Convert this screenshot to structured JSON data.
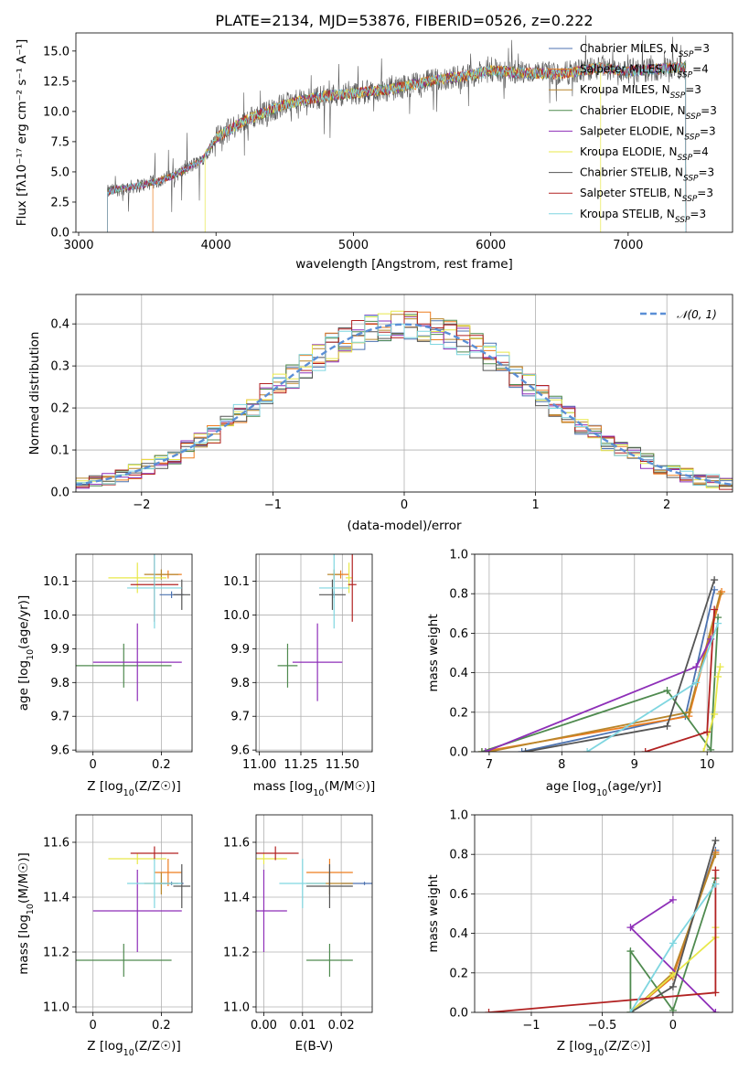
{
  "colors": [
    "#4C72B0",
    "#ED7D1F",
    "#B8862B",
    "#4F8A4F",
    "#8E2FB8",
    "#E8E84A",
    "#555555",
    "#B22222",
    "#7FD6E0"
  ],
  "chart_data": [
    {
      "type": "line",
      "title": "PLATE=2134, MJD=53876, FIBERID=0526, z=0.222",
      "xlabel": "wavelength [Angstrom, rest frame]",
      "ylabel": "Flux [fλ10⁻¹⁷ erg cm⁻² s⁻¹ A⁻¹]",
      "xlim": [
        2980,
        7760
      ],
      "ylim": [
        0,
        16.5
      ],
      "xticks": [
        3000,
        4000,
        5000,
        6000,
        7000
      ],
      "yticks": [
        0.0,
        2.5,
        5.0,
        7.5,
        10.0,
        12.5,
        15.0
      ],
      "legend_position": "right",
      "series": [
        {
          "name": "Chabrier MILES, NSSP=3",
          "name_main": "Chabrier MILES, N",
          "name_sub": "SSP",
          "name_tail": "=3"
        },
        {
          "name": "Salpeter MILES, NSSP=4",
          "name_main": "Salpeter MILES, N",
          "name_sub": "SSP",
          "name_tail": "=4"
        },
        {
          "name": "Kroupa MILES, NSSP=3",
          "name_main": "Kroupa MILES, N",
          "name_sub": "SSP",
          "name_tail": "=3"
        },
        {
          "name": "Chabrier ELODIE, NSSP=3",
          "name_main": "Chabrier ELODIE, N",
          "name_sub": "SSP",
          "name_tail": "=3"
        },
        {
          "name": "Salpeter ELODIE, NSSP=3",
          "name_main": "Salpeter ELODIE, N",
          "name_sub": "SSP",
          "name_tail": "=3"
        },
        {
          "name": "Kroupa ELODIE, NSSP=4",
          "name_main": "Kroupa ELODIE, N",
          "name_sub": "SSP",
          "name_tail": "=4"
        },
        {
          "name": "Chabrier STELIB, NSSP=3",
          "name_main": "Chabrier STELIB, N",
          "name_sub": "SSP",
          "name_tail": "=3"
        },
        {
          "name": "Salpeter STELIB, NSSP=3",
          "name_main": "Salpeter STELIB, N",
          "name_sub": "SSP",
          "name_tail": "=3"
        },
        {
          "name": "Kroupa STELIB, NSSP=3",
          "name_main": "Kroupa STELIB, N",
          "name_sub": "SSP",
          "name_tail": "=3"
        }
      ],
      "spectrum_anchor_points": {
        "x": [
          3200,
          3300,
          3500,
          3700,
          3900,
          4000,
          4200,
          4500,
          4800,
          5000,
          5300,
          5600,
          5900,
          6000,
          6200,
          6500,
          6800,
          7000,
          7300,
          7500
        ],
        "y": [
          3.3,
          3.6,
          4.0,
          4.7,
          6.0,
          7.8,
          9.2,
          10.6,
          11.3,
          11.5,
          11.9,
          12.6,
          13.1,
          13.4,
          13.2,
          13.1,
          13.6,
          13.3,
          13.6,
          13.7
        ]
      },
      "cutoffs": {
        "Salpeter MILES, NSSP=4": [
          3540,
          7420
        ],
        "Kroupa ELODIE, NSSP=4": [
          3920,
          6800
        ]
      }
    },
    {
      "type": "histogram",
      "xlabel": "(data-model)/error",
      "ylabel": "Normed distribution",
      "xlim": [
        -2.5,
        2.5
      ],
      "ylim": [
        0,
        0.47
      ],
      "xticks": [
        -2,
        -1,
        0,
        1,
        2
      ],
      "yticks": [
        0.0,
        0.1,
        0.2,
        0.3,
        0.4
      ],
      "legend": [
        {
          "name": "N(0,1)",
          "label_math": "𝒩(0, 1)",
          "style": "dashed"
        }
      ],
      "legend_position": "top-right",
      "bin_width": 0.1
    },
    {
      "type": "scatter",
      "xlabel": "Z [log10(Z/Z☉)]",
      "xlabel_main": "Z [log",
      "xlabel_sub": "10",
      "xlabel_tail": "(Z/Z☉)]",
      "ylabel": "age [log10(age/yr)]",
      "ylabel_main": "age  [log",
      "ylabel_sub": "10",
      "ylabel_tail": "(age/yr)]",
      "xlim": [
        -0.05,
        0.29
      ],
      "ylim": [
        9.595,
        10.18
      ],
      "xticks": [
        0.0,
        0.2
      ],
      "yticks": [
        9.6,
        9.7,
        9.8,
        9.9,
        10.0,
        10.1
      ]
    },
    {
      "type": "scatter",
      "xlabel": "mass [log10(M/M☉)]",
      "xlabel_main": "mass [log",
      "xlabel_sub": "10",
      "xlabel_tail": "(M/M☉)]",
      "xlim": [
        10.98,
        11.68
      ],
      "ylim": [
        9.595,
        10.18
      ],
      "xticks": [
        11.0,
        11.25,
        11.5
      ],
      "xtick_labels": [
        "11.00",
        "11.25",
        "11.50"
      ],
      "yticks": [
        9.6,
        9.7,
        9.8,
        9.9,
        10.0,
        10.1
      ]
    },
    {
      "type": "line",
      "xlabel": "age [log10(age/yr)]",
      "xlabel_main": "age  [log",
      "xlabel_sub": "10",
      "xlabel_tail": "(age/yr)]",
      "ylabel": "mass weight",
      "xlim": [
        6.8,
        10.35
      ],
      "ylim": [
        0,
        1.0
      ],
      "xticks": [
        7,
        8,
        9,
        10
      ],
      "yticks": [
        0.0,
        0.2,
        0.4,
        0.6,
        0.8,
        1.0
      ]
    },
    {
      "type": "scatter",
      "xlabel": "Z [log10(Z/Z☉)]",
      "xlabel_main": "Z [log",
      "xlabel_sub": "10",
      "xlabel_tail": "(Z/Z☉)]",
      "ylabel": "mass [log10(M/M☉)]",
      "ylabel_main": "mass [log",
      "ylabel_sub": "10",
      "ylabel_tail": "(M/M☉)]",
      "xlim": [
        -0.05,
        0.29
      ],
      "ylim": [
        10.98,
        11.7
      ],
      "xticks": [
        0.0,
        0.2
      ],
      "yticks": [
        11.0,
        11.2,
        11.4,
        11.6
      ]
    },
    {
      "type": "scatter",
      "xlabel": "E(B-V)",
      "xlim": [
        -0.002,
        0.028
      ],
      "ylim": [
        10.98,
        11.7
      ],
      "xticks": [
        0.0,
        0.01,
        0.02
      ],
      "xtick_labels": [
        "0.00",
        "0.01",
        "0.02"
      ],
      "yticks": [
        11.0,
        11.2,
        11.4,
        11.6
      ]
    },
    {
      "type": "line",
      "xlabel": "Z [log10(Z/Z☉)]",
      "xlabel_main": "Z [log",
      "xlabel_sub": "10",
      "xlabel_tail": "(Z/Z☉)]",
      "ylabel": "mass weight",
      "xlim": [
        -1.4,
        0.42
      ],
      "ylim": [
        0,
        1.0
      ],
      "xticks": [
        -1.0,
        -0.5,
        0.0
      ],
      "yticks": [
        0.0,
        0.2,
        0.4,
        0.6,
        0.8,
        1.0
      ]
    }
  ],
  "fits": [
    {
      "age": 10.06,
      "age_err": 0.01,
      "Z": 0.23,
      "Z_err": 0.035,
      "mass": 11.45,
      "mass_err": 0.006,
      "ebv": 0.026,
      "ebv_err": 0.006
    },
    {
      "age": 10.12,
      "age_err": 0.012,
      "Z": 0.22,
      "Z_err": 0.04,
      "mass": 11.49,
      "mass_err": 0.05,
      "ebv": 0.017,
      "ebv_err": 0.006
    },
    {
      "age": 10.12,
      "age_err": 0.015,
      "Z": 0.2,
      "Z_err": 0.05,
      "mass": 11.45,
      "mass_err": 0.04,
      "ebv": 0.017,
      "ebv_err": 0.006
    },
    {
      "age": 9.85,
      "age_err": 0.065,
      "Z": 0.09,
      "Z_err": 0.14,
      "mass": 11.17,
      "mass_err": 0.06,
      "ebv": 0.017,
      "ebv_err": 0.006
    },
    {
      "age": 9.86,
      "age_err": 0.115,
      "Z": 0.13,
      "Z_err": 0.13,
      "mass": 11.35,
      "mass_err": 0.15,
      "ebv": 0.0,
      "ebv_err": 0.006
    },
    {
      "age": 10.11,
      "age_err": 0.045,
      "Z": 0.13,
      "Z_err": 0.085,
      "mass": 11.54,
      "mass_err": 0.02,
      "ebv": 0.0,
      "ebv_err": 0.006
    },
    {
      "age": 10.06,
      "age_err": 0.045,
      "Z": 0.26,
      "Z_err": 0.025,
      "mass": 11.44,
      "mass_err": 0.08,
      "ebv": 0.017,
      "ebv_err": 0.006
    },
    {
      "age": 10.09,
      "age_err": 0.11,
      "Z": 0.18,
      "Z_err": 0.07,
      "mass": 11.56,
      "mass_err": 0.025,
      "ebv": 0.003,
      "ebv_err": 0.006
    },
    {
      "age": 10.08,
      "age_err": 0.12,
      "Z": 0.18,
      "Z_err": 0.08,
      "mass": 11.45,
      "mass_err": 0.09,
      "ebv": 0.01,
      "ebv_err": 0.006
    }
  ],
  "weights": [
    {
      "age": [
        7.45,
        9.7,
        10.1
      ],
      "Z": [
        -0.3,
        0.0,
        0.3
      ],
      "w": [
        0.0,
        0.18,
        0.82
      ]
    },
    {
      "age": [
        6.9,
        9.75,
        10.2
      ],
      "Z": [
        -0.3,
        0.0,
        0.3
      ],
      "w": [
        0.0,
        0.18,
        0.81
      ]
    },
    {
      "age": [
        7.0,
        9.75,
        10.18
      ],
      "Z": [
        -0.3,
        0.0,
        0.3
      ],
      "w": [
        0.0,
        0.2,
        0.8
      ]
    },
    {
      "age": [
        6.9,
        9.45,
        10.05,
        10.15
      ],
      "Z": [
        -0.3,
        -0.3,
        0.0,
        0.3
      ],
      "w": [
        0.0,
        0.31,
        0.01,
        0.68
      ]
    },
    {
      "age": [
        6.95,
        9.85,
        10.05
      ],
      "Z": [
        0.3,
        -0.3,
        0.0
      ],
      "w": [
        0.0,
        0.43,
        0.57
      ]
    },
    {
      "age": [
        9.95,
        10.1,
        10.15,
        10.18
      ],
      "Z": [
        -0.3,
        0.0,
        0.3,
        0.3
      ],
      "w": [
        0.0,
        0.19,
        0.38,
        0.43
      ]
    },
    {
      "age": [
        7.5,
        9.45,
        10.1
      ],
      "Z": [
        -0.3,
        0.0,
        0.3
      ],
      "w": [
        0.0,
        0.13,
        0.87
      ]
    },
    {
      "age": [
        9.15,
        10.0,
        10.1
      ],
      "Z": [
        -1.3,
        0.3,
        0.3
      ],
      "w": [
        0.0,
        0.1,
        0.72
      ]
    },
    {
      "age": [
        8.35,
        9.85,
        10.15
      ],
      "Z": [
        -0.3,
        0.0,
        0.3
      ],
      "w": [
        0.0,
        0.35,
        0.65
      ]
    }
  ]
}
